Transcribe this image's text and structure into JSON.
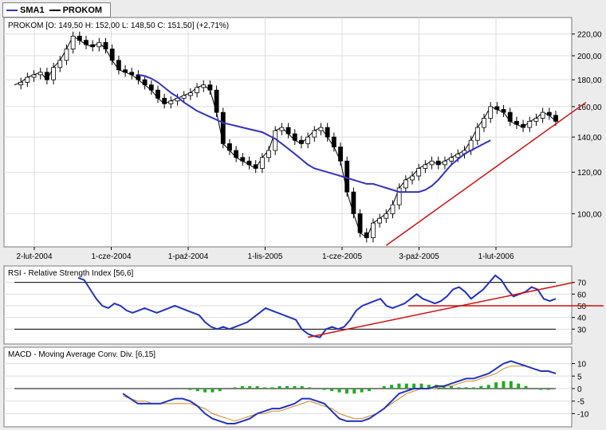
{
  "legend": [
    {
      "label": "SMA1",
      "color": "#3333bb"
    },
    {
      "label": "PROKOM",
      "color": "#000000"
    }
  ],
  "chart_data": [
    {
      "type": "candlestick",
      "title": "PROKOM [O: 149,50  H: 152,00  L: 148,50  C: 151,50] (+2,71%)",
      "x_ticks": [
        "2-lut-2004",
        "1-cze-2004",
        "1-paź-2004",
        "1-lis-2005",
        "1-cze-2005",
        "3-paź-2005",
        "1-lut-2006"
      ],
      "y_ticks": [
        "100,00",
        "120,00",
        "140,00",
        "160,00",
        "180,00",
        "200,00",
        "220,00"
      ],
      "y_scale": "log",
      "ylim": [
        88,
        230
      ],
      "price_line": [
        176,
        178,
        182,
        184,
        186,
        180,
        190,
        196,
        206,
        218,
        214,
        210,
        208,
        212,
        206,
        196,
        188,
        186,
        184,
        180,
        176,
        172,
        166,
        162,
        164,
        166,
        168,
        170,
        174,
        176,
        172,
        156,
        136,
        132,
        128,
        126,
        124,
        122,
        128,
        132,
        144,
        146,
        142,
        138,
        136,
        140,
        144,
        146,
        140,
        134,
        126,
        110,
        100,
        92,
        90,
        96,
        98,
        100,
        104,
        112,
        116,
        118,
        122,
        124,
        126,
        124,
        126,
        128,
        130,
        132,
        138,
        146,
        152,
        160,
        158,
        156,
        150,
        148,
        146,
        150,
        152,
        156,
        154,
        150
      ],
      "sma_line": [
        null,
        null,
        null,
        null,
        null,
        null,
        null,
        null,
        null,
        null,
        null,
        null,
        null,
        null,
        null,
        null,
        null,
        null,
        null,
        184,
        183,
        181,
        178,
        174,
        170,
        167,
        163,
        160,
        157,
        155,
        153,
        151,
        149,
        148,
        147,
        146,
        145,
        144,
        143,
        141,
        139,
        136,
        133,
        130,
        127,
        124,
        122,
        121,
        120,
        119,
        118,
        117,
        116,
        115,
        114,
        114,
        113,
        112,
        111,
        110,
        110,
        110,
        110,
        111,
        113,
        116,
        120,
        124,
        127,
        130,
        132,
        134,
        136,
        138
      ],
      "trendline": [
        [
          57,
          87
        ],
        [
          82,
          163
        ]
      ]
    },
    {
      "type": "line",
      "title": "RSI - Relative Strength Index [56,6]",
      "y_ticks": [
        "30",
        "40",
        "50",
        "60",
        "70"
      ],
      "ylim": [
        20,
        80
      ],
      "levels": [
        30,
        70
      ],
      "values": [
        74,
        72,
        64,
        56,
        50,
        48,
        52,
        50,
        46,
        44,
        46,
        48,
        46,
        44,
        46,
        48,
        50,
        48,
        46,
        44,
        42,
        36,
        32,
        30,
        32,
        30,
        32,
        34,
        36,
        40,
        44,
        48,
        46,
        44,
        42,
        40,
        38,
        30,
        26,
        24,
        23,
        30,
        32,
        30,
        32,
        38,
        46,
        50,
        52,
        54,
        56,
        50,
        48,
        50,
        52,
        56,
        60,
        56,
        54,
        52,
        54,
        58,
        64,
        66,
        62,
        56,
        60,
        64,
        70,
        76,
        72,
        64,
        58,
        60,
        62,
        66,
        64,
        56,
        54,
        56
      ],
      "trendline": [
        [
          38,
          23
        ],
        [
          82,
          70
        ]
      ],
      "hline": {
        "value": 50,
        "from": 80
      }
    },
    {
      "type": "bar+line",
      "title": "MACD - Moving Average Conv. Div. [6,15]",
      "y_ticks": [
        "10",
        "5",
        "0",
        "-5",
        "-10"
      ],
      "ylim": [
        -14,
        14
      ],
      "macd": [
        null,
        null,
        null,
        null,
        null,
        null,
        -2,
        -4,
        -6,
        -6,
        -6,
        -6,
        -5,
        -4,
        -4,
        -5,
        -7,
        -10,
        -12,
        -13,
        -14,
        -14,
        -13,
        -12,
        -10,
        -9,
        -8,
        -8,
        -7,
        -6,
        -4,
        -4,
        -5,
        -6,
        -9,
        -12,
        -13,
        -13,
        -13,
        -12,
        -10,
        -8,
        -5,
        -2,
        -1,
        0,
        0,
        0,
        1,
        1,
        2,
        3,
        4,
        4,
        5,
        6,
        8,
        10,
        11,
        10,
        9,
        8,
        7,
        7,
        6
      ],
      "signal": [
        null,
        null,
        null,
        null,
        null,
        null,
        -3,
        -4,
        -5,
        -5,
        -6,
        -6,
        -6,
        -6,
        -6,
        -6,
        -7,
        -8,
        -10,
        -11,
        -12,
        -13,
        -12,
        -11,
        -10,
        -10,
        -9,
        -9,
        -8,
        -7,
        -6,
        -5,
        -6,
        -7,
        -8,
        -10,
        -11,
        -12,
        -12,
        -11,
        -10,
        -8,
        -6,
        -4,
        -2,
        -1,
        0,
        0,
        0,
        1,
        1,
        2,
        3,
        3,
        4,
        5,
        6,
        8,
        9,
        9,
        9,
        8,
        7,
        7,
        6
      ],
      "histogram": [
        0,
        0,
        0,
        0,
        0,
        0,
        0,
        0,
        0,
        0,
        0,
        0,
        0,
        0,
        0,
        -0.5,
        -1,
        -1.5,
        -1.5,
        -1,
        0,
        0.5,
        1,
        1,
        1,
        0.5,
        0.5,
        1,
        1,
        1,
        1,
        0.5,
        0,
        -0.5,
        -1,
        -1.5,
        -2,
        -2,
        -1.5,
        -1,
        0,
        1,
        1.5,
        2,
        2,
        2,
        2,
        1.5,
        1.5,
        1,
        1,
        0.5,
        0.5,
        0.5,
        1,
        1.5,
        2.5,
        3,
        3,
        2,
        1,
        0,
        -0.5,
        -0.5,
        0
      ]
    }
  ]
}
